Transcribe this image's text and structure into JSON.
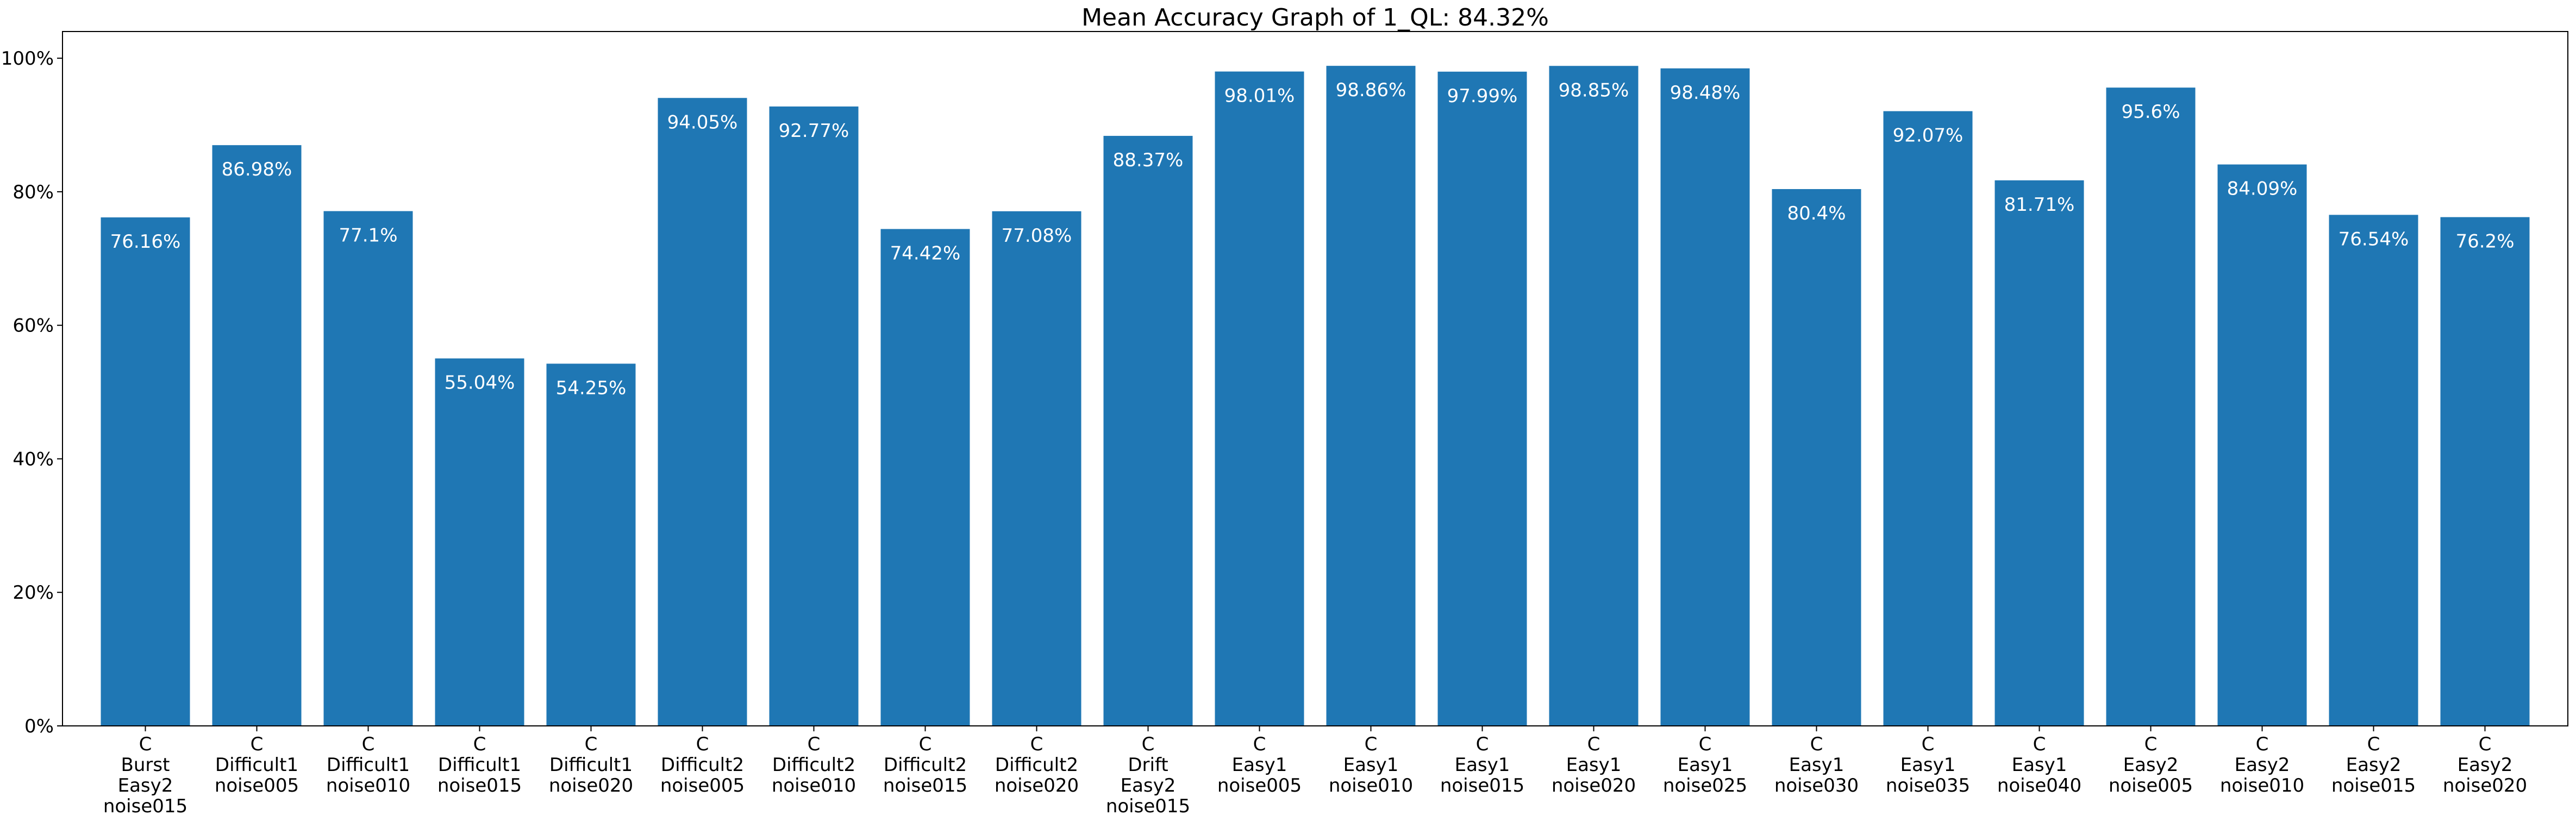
{
  "chart_data": {
    "type": "bar",
    "title": "Mean Accuracy Graph of 1_QL: 84.32%",
    "xlabel": "",
    "ylabel": "",
    "ylim": [
      0,
      104
    ],
    "yticks": [
      0,
      20,
      40,
      60,
      80,
      100
    ],
    "ytick_labels": [
      "0%",
      "20%",
      "40%",
      "60%",
      "80%",
      "100%"
    ],
    "grid": false,
    "bar_color": "#1f77b4",
    "label_color": "#ffffff",
    "categories": [
      [
        "C",
        "Burst",
        "Easy2",
        "noise015"
      ],
      [
        "C",
        "Difficult1",
        "noise005"
      ],
      [
        "C",
        "Difficult1",
        "noise010"
      ],
      [
        "C",
        "Difficult1",
        "noise015"
      ],
      [
        "C",
        "Difficult1",
        "noise020"
      ],
      [
        "C",
        "Difficult2",
        "noise005"
      ],
      [
        "C",
        "Difficult2",
        "noise010"
      ],
      [
        "C",
        "Difficult2",
        "noise015"
      ],
      [
        "C",
        "Difficult2",
        "noise020"
      ],
      [
        "C",
        "Drift",
        "Easy2",
        "noise015"
      ],
      [
        "C",
        "Easy1",
        "noise005"
      ],
      [
        "C",
        "Easy1",
        "noise010"
      ],
      [
        "C",
        "Easy1",
        "noise015"
      ],
      [
        "C",
        "Easy1",
        "noise020"
      ],
      [
        "C",
        "Easy1",
        "noise025"
      ],
      [
        "C",
        "Easy1",
        "noise030"
      ],
      [
        "C",
        "Easy1",
        "noise035"
      ],
      [
        "C",
        "Easy1",
        "noise040"
      ],
      [
        "C",
        "Easy2",
        "noise005"
      ],
      [
        "C",
        "Easy2",
        "noise010"
      ],
      [
        "C",
        "Easy2",
        "noise015"
      ],
      [
        "C",
        "Easy2",
        "noise020"
      ]
    ],
    "values": [
      76.16,
      86.98,
      77.1,
      55.04,
      54.25,
      94.05,
      92.77,
      74.42,
      77.08,
      88.37,
      98.01,
      98.86,
      97.99,
      98.85,
      98.48,
      80.4,
      92.07,
      81.71,
      95.6,
      84.09,
      76.54,
      76.2
    ],
    "data_labels": [
      "76.16%",
      "86.98%",
      "77.1%",
      "55.04%",
      "54.25%",
      "94.05%",
      "92.77%",
      "74.42%",
      "77.08%",
      "88.37%",
      "98.01%",
      "98.86%",
      "97.99%",
      "98.85%",
      "98.48%",
      "80.4%",
      "92.07%",
      "81.71%",
      "95.6%",
      "84.09%",
      "76.54%",
      "76.2%"
    ]
  }
}
